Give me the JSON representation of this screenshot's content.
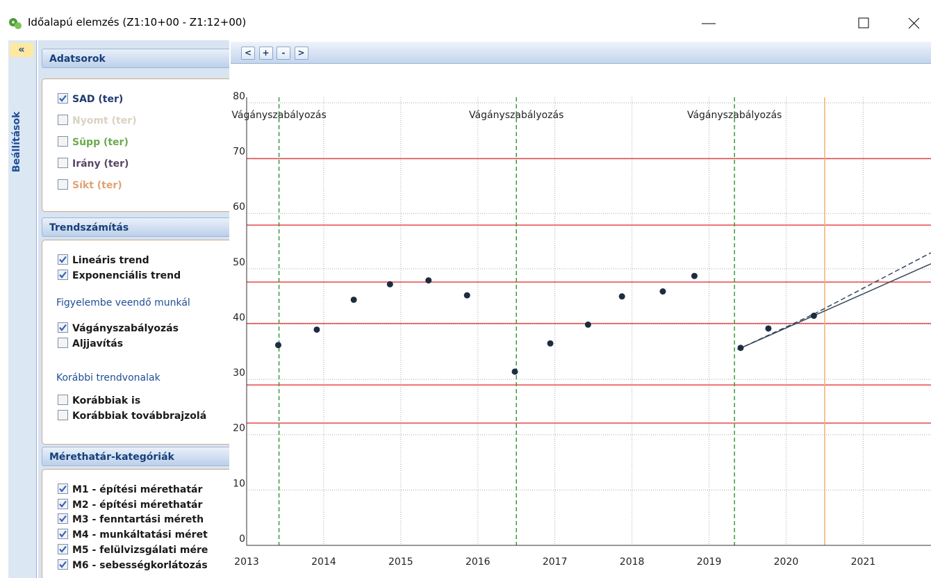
{
  "window": {
    "title": "Időalapú elemzés (Z1:10+00 - Z1:12+00)"
  },
  "sidebar": {
    "collapse": "«",
    "tab": "Beállítások"
  },
  "panels": [
    {
      "title": "Adatsorok",
      "groups": [
        {
          "items": [
            {
              "label": "SAD (ter)",
              "checked": true,
              "color": "#1f3b6e"
            },
            {
              "label": "Nyomt (ter)",
              "checked": false,
              "color": "#d9d2c2"
            },
            {
              "label": "Süpp (ter)",
              "checked": false,
              "color": "#6aaa4c"
            },
            {
              "label": "Irány (ter)",
              "checked": false,
              "color": "#5a4668"
            },
            {
              "label": "Síkt (ter)",
              "checked": false,
              "color": "#e2a274"
            }
          ]
        }
      ]
    },
    {
      "title": "Trendszámítás",
      "groups": [
        {
          "items": [
            {
              "label": "Lineáris trend",
              "checked": true,
              "color": "#1a1a1a"
            },
            {
              "label": "Exponenciális trend",
              "checked": true,
              "color": "#1a1a1a"
            }
          ]
        },
        {
          "heading": "Figyelembe veendő munkál",
          "items": [
            {
              "label": "Vágányszabályozás",
              "checked": true,
              "color": "#1a1a1a"
            },
            {
              "label": "Aljjavítás",
              "checked": false,
              "color": "#1a1a1a"
            }
          ]
        },
        {
          "heading": "Korábbi trendvonalak",
          "items": [
            {
              "label": "Korábbiak is",
              "checked": false,
              "color": "#1a1a1a"
            },
            {
              "label": "Korábbiak továbbrajzolá",
              "checked": false,
              "color": "#1a1a1a"
            }
          ]
        }
      ]
    },
    {
      "title": "Mérethatár-kategóriák",
      "groups": [
        {
          "items": [
            {
              "label": "M1 - építési mérethatár",
              "checked": true,
              "color": "#1a1a1a"
            },
            {
              "label": "M2 - építési mérethatár",
              "checked": true,
              "color": "#1a1a1a"
            },
            {
              "label": "M3 - fenntartási méreth",
              "checked": true,
              "color": "#1a1a1a"
            },
            {
              "label": "M4 - munkáltatási méret",
              "checked": true,
              "color": "#1a1a1a"
            },
            {
              "label": "M5 - felülvizsgálati mére",
              "checked": true,
              "color": "#1a1a1a"
            },
            {
              "label": "M6 - sebességkorlátozás",
              "checked": true,
              "color": "#1a1a1a"
            }
          ]
        }
      ]
    }
  ],
  "toolbar": {
    "buttons": [
      "<",
      "+",
      "-",
      ">"
    ]
  },
  "chart_data": {
    "type": "scatter",
    "xlim": [
      2013,
      2021.88
    ],
    "ylim": [
      0,
      81
    ],
    "xticks": [
      2013,
      2014,
      2015,
      2016,
      2017,
      2018,
      2019,
      2020,
      2021
    ],
    "yticks": [
      0,
      10,
      20,
      30,
      40,
      50,
      60,
      70,
      80
    ],
    "grid": true,
    "series": [
      {
        "color": "#1c2d40",
        "x": [
          2013.41,
          2013.91,
          2014.39,
          2014.86,
          2015.36,
          2015.86,
          2016.48,
          2016.94,
          2017.43,
          2017.87,
          2018.4,
          2018.81,
          2019.41,
          2019.77,
          2020.36
        ],
        "values": [
          36.2,
          39.0,
          44.4,
          47.2,
          47.9,
          45.2,
          31.4,
          36.5,
          39.9,
          45.0,
          45.9,
          48.7,
          35.7,
          39.2,
          41.5
        ]
      }
    ],
    "trend_lines": [
      {
        "color": "#34465c",
        "dashed": false,
        "x": [
          2019.37,
          2021.88
        ],
        "values": [
          35.4,
          50.9
        ]
      },
      {
        "color": "#34465c",
        "dashed": true,
        "x": [
          2019.37,
          2020.36,
          2021.88
        ],
        "values": [
          35.4,
          41.8,
          52.9
        ]
      }
    ],
    "limit_lines": {
      "color": "#e8474a",
      "values": [
        69.9,
        57.9,
        47.6,
        40.1,
        29.0,
        22.1
      ]
    },
    "events": {
      "color": "#3a9a3a",
      "x": [
        2013.42,
        2016.5,
        2019.33
      ],
      "labels": [
        "Vágányszabályozás",
        "Vágányszabályozás",
        "Vágányszabályozás"
      ]
    },
    "marker_line": {
      "color": "#f0b070",
      "x": 2020.5
    }
  }
}
